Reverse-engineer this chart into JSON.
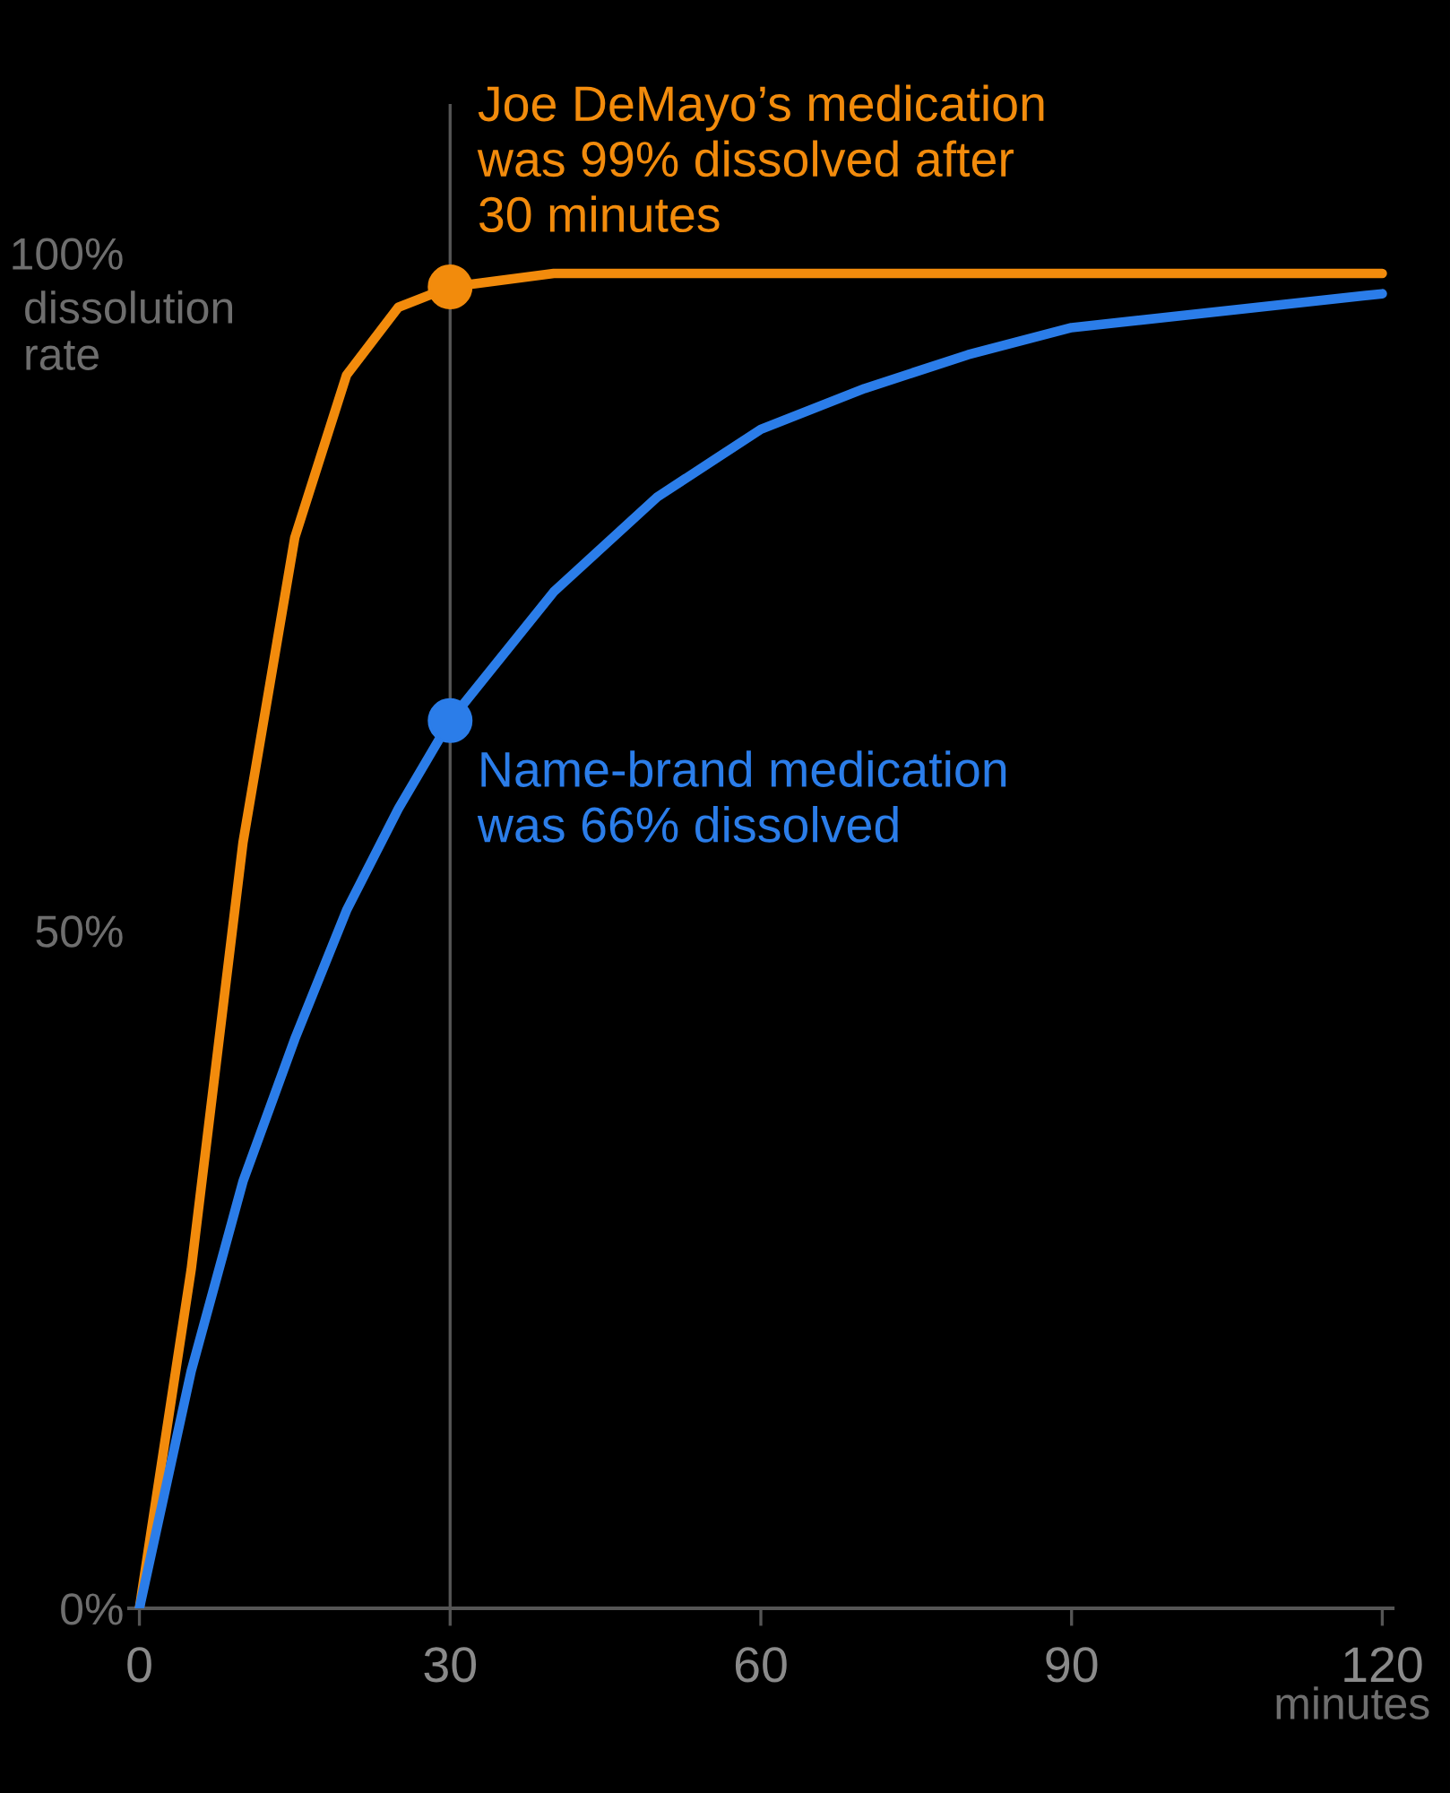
{
  "chart_data": {
    "type": "line",
    "ylabel": "dissolution\nrate",
    "xlabel": "minutes",
    "xlim": [
      -1,
      121
    ],
    "xticks": [
      0,
      30,
      60,
      90,
      120
    ],
    "ylim": [
      0,
      111
    ],
    "yticks": [
      {
        "value": 0,
        "label": "0%"
      },
      {
        "value": 50,
        "label": "50%"
      },
      {
        "value": 100,
        "label": "100%"
      }
    ],
    "series": [
      {
        "color": "#f28b0c",
        "x": [
          0,
          5,
          10,
          15,
          20,
          25,
          30,
          40,
          50,
          60,
          70,
          80,
          90,
          120
        ],
        "values": [
          0,
          25,
          56.5,
          79,
          91,
          96,
          97.5,
          98.5,
          98.5,
          98.5,
          98.5,
          98.5,
          98.5,
          98.5
        ]
      },
      {
        "color": "#2b7de9",
        "x": [
          0,
          5,
          10,
          15,
          20,
          25,
          30,
          40,
          50,
          60,
          70,
          80,
          90,
          120
        ],
        "values": [
          0,
          17.5,
          31.5,
          42,
          51.5,
          59,
          65.5,
          75,
          82,
          87,
          90,
          92.5,
          94.5,
          97
        ]
      }
    ],
    "annotations": [
      {
        "text": "Joe DeMayo’s medication\nwas 99% dissolved after\n30 minutes",
        "x": 30,
        "y": 97.5
      },
      {
        "text": "Name-brand medication\nwas 66% dissolved",
        "x": 30,
        "y": 65.5
      }
    ],
    "ref_lines": [
      {
        "axis": "x",
        "value": 30,
        "color": "#555555"
      }
    ],
    "grid": false,
    "marker": "none",
    "line_style": "solid"
  }
}
